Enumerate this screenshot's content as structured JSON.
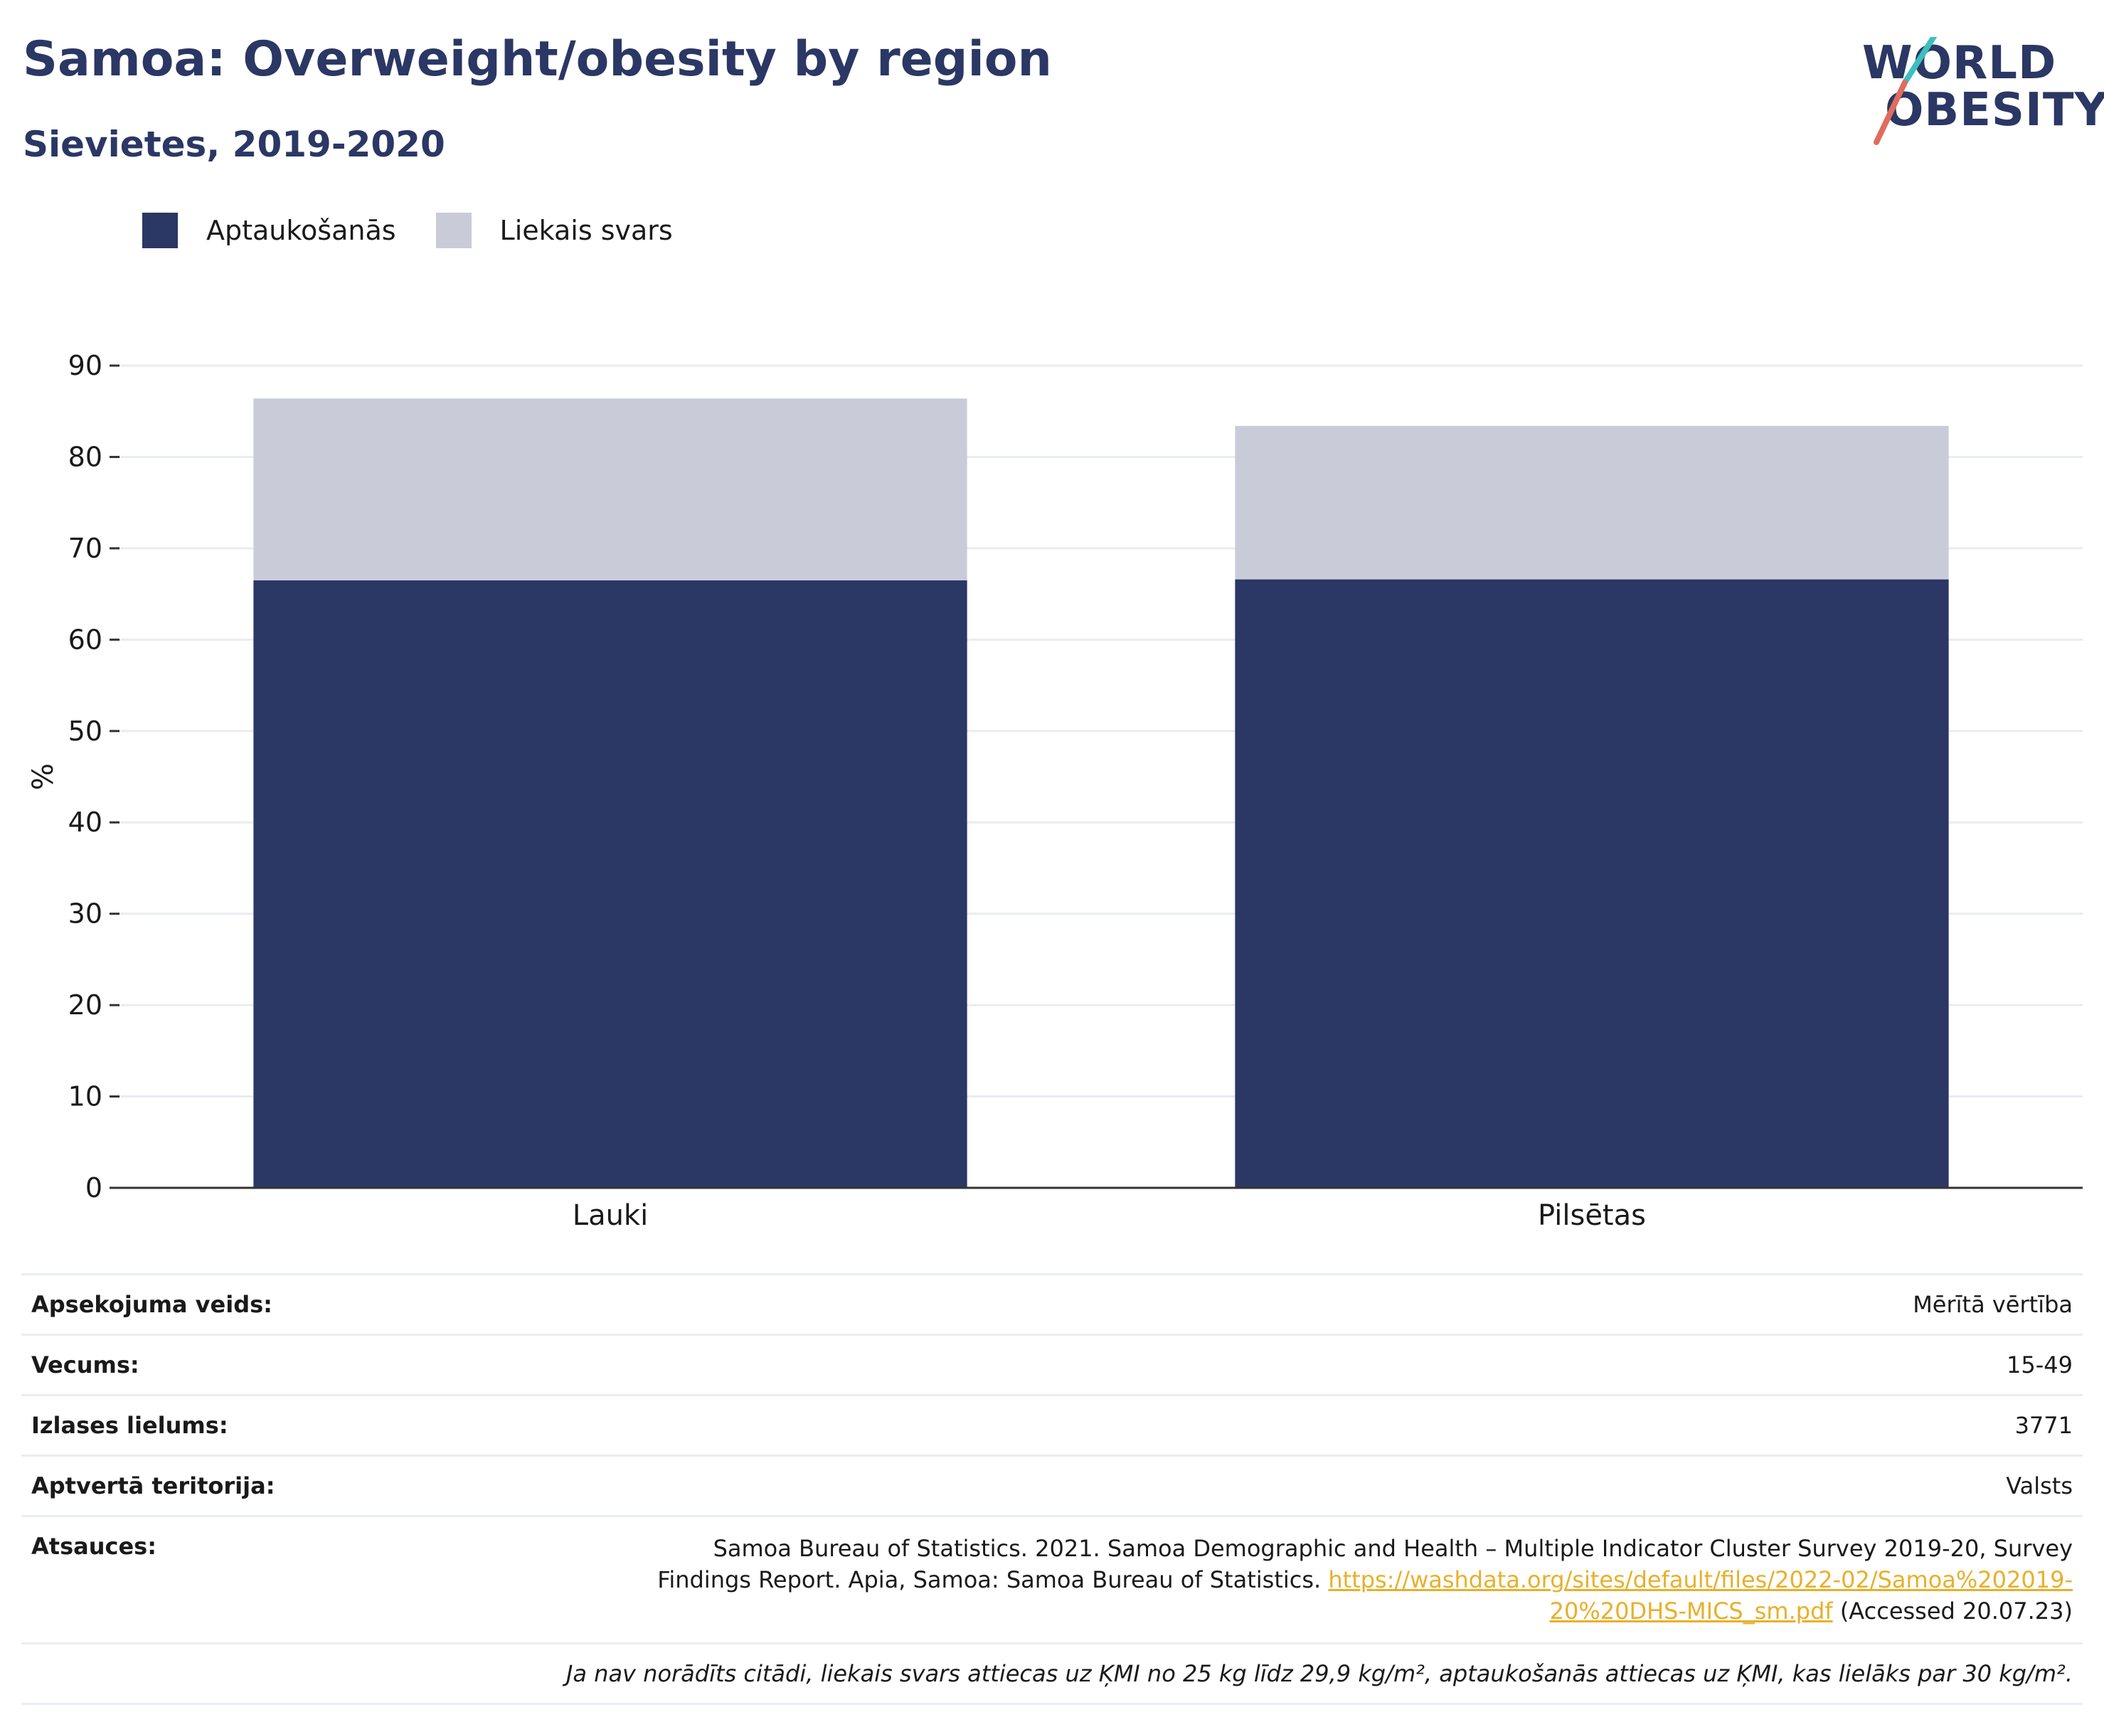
{
  "header": {
    "title": "Samoa: Overweight/obesity by region",
    "subtitle": "Sievietes, 2019-2020"
  },
  "logo": {
    "line1": "WORLD",
    "line2": "OBESITY"
  },
  "colors": {
    "obesity": "#2b3764",
    "overweight": "#c9ccd8",
    "brand": "#2b3764",
    "link": "#e8b02a"
  },
  "chart_data": {
    "type": "bar",
    "stacked": true,
    "categories": [
      "Lauki",
      "Pilsētas"
    ],
    "series": [
      {
        "name": "Aptaukošanās",
        "values": [
          66.5,
          66.6
        ]
      },
      {
        "name": "Liekais svars",
        "values": [
          19.9,
          16.8
        ]
      }
    ],
    "ylabel": "%",
    "ylim": [
      0,
      90
    ],
    "yticks": [
      0,
      10,
      20,
      30,
      40,
      50,
      60,
      70,
      80,
      90
    ],
    "grid": true,
    "legend": "top-left"
  },
  "info": {
    "rows": [
      {
        "key": "Apsekojuma veids:",
        "value": "Mērītā vērtība"
      },
      {
        "key": "Vecums:",
        "value": "15-49"
      },
      {
        "key": "Izlases lielums:",
        "value": "3771"
      },
      {
        "key": "Aptvertā teritorija:",
        "value": "Valsts"
      }
    ],
    "ref_key": "Atsauces:",
    "ref_text": "Samoa Bureau of Statistics. 2021. Samoa Demographic and Health – Multiple Indicator Cluster Survey 2019-20, Survey Findings Report. Apia, Samoa: Samoa Bureau of Statistics. ",
    "ref_link": "https://washdata.org/sites/default/files/2022-02/Samoa%202019-20%20DHS-MICS_sm.pdf",
    "ref_accessed": " (Accessed 20.07.23)",
    "note": "Ja nav norādīts citādi, liekais svars attiecas uz ĶMI no 25 kg līdz 29,9 kg/m², aptaukošanās attiecas uz ĶMI, kas lielāks par 30 kg/m²."
  }
}
